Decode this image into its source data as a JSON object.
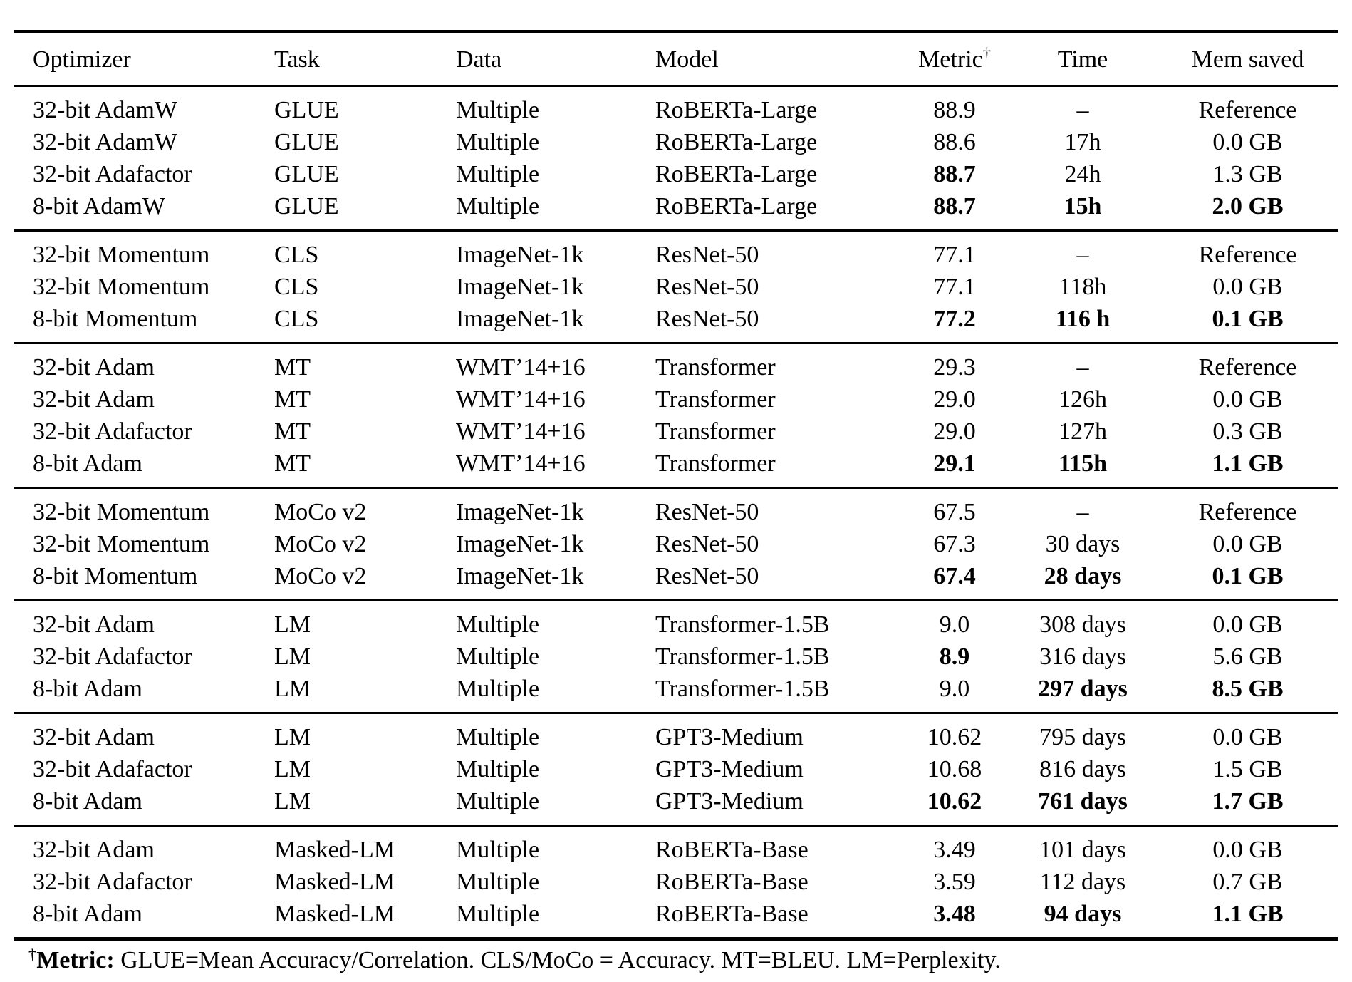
{
  "table": {
    "headers": [
      {
        "label": "Optimizer"
      },
      {
        "label": "Task"
      },
      {
        "label": "Data"
      },
      {
        "label": "Model"
      },
      {
        "label": "Metric",
        "sup": "†"
      },
      {
        "label": "Time"
      },
      {
        "label": "Mem saved"
      }
    ],
    "groups": [
      {
        "rows": [
          {
            "cells": [
              "32-bit AdamW",
              "GLUE",
              "Multiple",
              "RoBERTa-Large",
              "88.9",
              "–",
              "Reference"
            ],
            "bold": []
          },
          {
            "cells": [
              "32-bit AdamW",
              "GLUE",
              "Multiple",
              "RoBERTa-Large",
              "88.6",
              "17h",
              "0.0 GB"
            ],
            "bold": []
          },
          {
            "cells": [
              "32-bit Adafactor",
              "GLUE",
              "Multiple",
              "RoBERTa-Large",
              "88.7",
              "24h",
              "1.3 GB"
            ],
            "bold": [
              4
            ]
          },
          {
            "cells": [
              "8-bit AdamW",
              "GLUE",
              "Multiple",
              "RoBERTa-Large",
              "88.7",
              "15h",
              "2.0 GB"
            ],
            "bold": [
              4,
              5,
              6
            ]
          }
        ]
      },
      {
        "rows": [
          {
            "cells": [
              "32-bit Momentum",
              "CLS",
              "ImageNet-1k",
              "ResNet-50",
              "77.1",
              "–",
              "Reference"
            ],
            "bold": []
          },
          {
            "cells": [
              "32-bit Momentum",
              "CLS",
              "ImageNet-1k",
              "ResNet-50",
              "77.1",
              "118h",
              "0.0 GB"
            ],
            "bold": []
          },
          {
            "cells": [
              "8-bit Momentum",
              "CLS",
              "ImageNet-1k",
              "ResNet-50",
              "77.2",
              "116 h",
              "0.1 GB"
            ],
            "bold": [
              4,
              5,
              6
            ]
          }
        ]
      },
      {
        "rows": [
          {
            "cells": [
              "32-bit Adam",
              "MT",
              "WMT’14+16",
              "Transformer",
              "29.3",
              "–",
              "Reference"
            ],
            "bold": []
          },
          {
            "cells": [
              "32-bit Adam",
              "MT",
              "WMT’14+16",
              "Transformer",
              "29.0",
              "126h",
              "0.0 GB"
            ],
            "bold": []
          },
          {
            "cells": [
              "32-bit Adafactor",
              "MT",
              "WMT’14+16",
              "Transformer",
              "29.0",
              "127h",
              "0.3 GB"
            ],
            "bold": []
          },
          {
            "cells": [
              "8-bit Adam",
              "MT",
              "WMT’14+16",
              "Transformer",
              "29.1",
              "115h",
              "1.1 GB"
            ],
            "bold": [
              4,
              5,
              6
            ]
          }
        ]
      },
      {
        "rows": [
          {
            "cells": [
              "32-bit Momentum",
              "MoCo v2",
              "ImageNet-1k",
              "ResNet-50",
              "67.5",
              "–",
              "Reference"
            ],
            "bold": []
          },
          {
            "cells": [
              "32-bit Momentum",
              "MoCo v2",
              "ImageNet-1k",
              "ResNet-50",
              "67.3",
              "30 days",
              "0.0 GB"
            ],
            "bold": []
          },
          {
            "cells": [
              "8-bit Momentum",
              "MoCo v2",
              "ImageNet-1k",
              "ResNet-50",
              "67.4",
              "28 days",
              "0.1 GB"
            ],
            "bold": [
              4,
              5,
              6
            ]
          }
        ]
      },
      {
        "rows": [
          {
            "cells": [
              "32-bit Adam",
              "LM",
              "Multiple",
              "Transformer-1.5B",
              "9.0",
              "308 days",
              "0.0 GB"
            ],
            "bold": []
          },
          {
            "cells": [
              "32-bit Adafactor",
              "LM",
              "Multiple",
              "Transformer-1.5B",
              "8.9",
              "316 days",
              "5.6 GB"
            ],
            "bold": [
              4
            ]
          },
          {
            "cells": [
              "8-bit Adam",
              "LM",
              "Multiple",
              "Transformer-1.5B",
              "9.0",
              "297 days",
              "8.5 GB"
            ],
            "bold": [
              5,
              6
            ]
          }
        ]
      },
      {
        "rows": [
          {
            "cells": [
              "32-bit Adam",
              "LM",
              "Multiple",
              "GPT3-Medium",
              "10.62",
              "795 days",
              "0.0 GB"
            ],
            "bold": []
          },
          {
            "cells": [
              "32-bit Adafactor",
              "LM",
              "Multiple",
              "GPT3-Medium",
              "10.68",
              "816 days",
              "1.5 GB"
            ],
            "bold": []
          },
          {
            "cells": [
              "8-bit Adam",
              "LM",
              "Multiple",
              "GPT3-Medium",
              "10.62",
              "761 days",
              "1.7 GB"
            ],
            "bold": [
              4,
              5,
              6
            ]
          }
        ]
      },
      {
        "rows": [
          {
            "cells": [
              "32-bit Adam",
              "Masked-LM",
              "Multiple",
              "RoBERTa-Base",
              "3.49",
              "101 days",
              "0.0 GB"
            ],
            "bold": []
          },
          {
            "cells": [
              "32-bit Adafactor",
              "Masked-LM",
              "Multiple",
              "RoBERTa-Base",
              "3.59",
              "112 days",
              "0.7 GB"
            ],
            "bold": []
          },
          {
            "cells": [
              "8-bit Adam",
              "Masked-LM",
              "Multiple",
              "RoBERTa-Base",
              "3.48",
              "94 days",
              "1.1 GB"
            ],
            "bold": [
              4,
              5,
              6
            ]
          }
        ]
      }
    ]
  },
  "footnote": {
    "dagger": "†",
    "label": "Metric:",
    "text": " GLUE=Mean Accuracy/Correlation. CLS/MoCo = Accuracy. MT=BLEU. LM=Perplexity."
  }
}
